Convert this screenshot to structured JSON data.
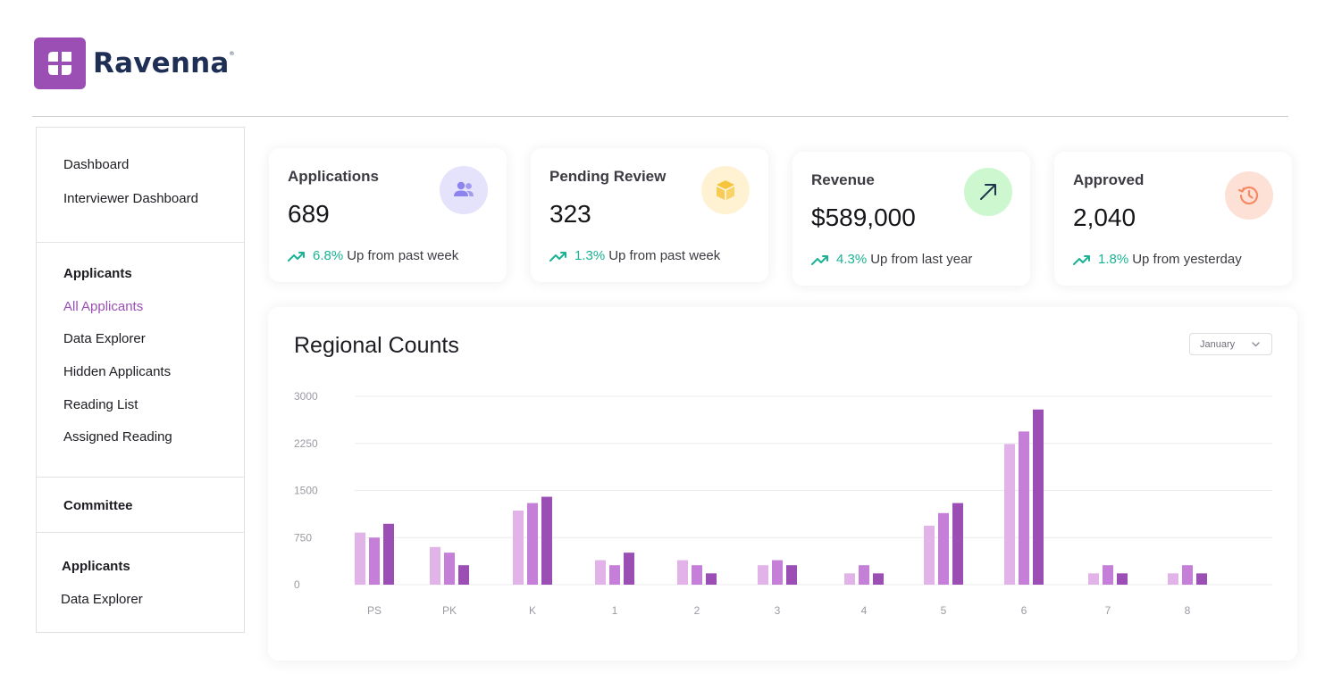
{
  "brand": {
    "name": "Ravenna",
    "registered_mark": "®",
    "logo_icon": "window-logo-icon",
    "color": "#9b4fb5"
  },
  "sidebar": {
    "top_items": [
      {
        "label": "Dashboard"
      },
      {
        "label": "Interviewer Dashboard"
      }
    ],
    "applicants": {
      "heading": "Applicants",
      "items": [
        {
          "label": "All Applicants",
          "active": true
        },
        {
          "label": "Data Explorer"
        },
        {
          "label": "Hidden Applicants"
        },
        {
          "label": "Reading List"
        },
        {
          "label": "Assigned Reading"
        }
      ]
    },
    "committee": {
      "heading": "Committee"
    },
    "applicants2": {
      "heading": "Applicants",
      "items": [
        {
          "label": "Data Explorer"
        }
      ]
    }
  },
  "stats": [
    {
      "title": "Applications",
      "value": "689",
      "pct": "6.8%",
      "trend_text": "Up from past week",
      "icon": "users-icon",
      "icon_bg": "#e4e3fb",
      "icon_color": "#8d83ee"
    },
    {
      "title": "Pending Review",
      "value": "323",
      "pct": "1.3%",
      "trend_text": "Up from past week",
      "icon": "box-icon",
      "icon_bg": "#fff2d3",
      "icon_color": "#f7c53d"
    },
    {
      "title": "Revenue",
      "value": "$589,000",
      "pct": "4.3%",
      "trend_text": "Up from last year",
      "icon": "arrow-up-right-icon",
      "icon_bg": "#cdf8cf",
      "icon_color": "#1e3550"
    },
    {
      "title": "Approved",
      "value": "2,040",
      "pct": "1.8%",
      "trend_text": "Up from yesterday",
      "icon": "history-clock-icon",
      "icon_bg": "#fde1d6",
      "icon_color": "#f58a63"
    }
  ],
  "trend_color": "#19b394",
  "regional": {
    "title": "Regional Counts",
    "month_select": {
      "value": "January"
    }
  },
  "chart_data": {
    "type": "bar",
    "title": "Regional Counts",
    "categories": [
      "PS",
      "PK",
      "K",
      "1",
      "2",
      "3",
      "4",
      "5",
      "6",
      "7",
      "8"
    ],
    "series": [
      {
        "values": [
          830,
          600,
          1180,
          390,
          390,
          310,
          180,
          940,
          2240,
          180,
          180
        ],
        "color": "#e2b3e8"
      },
      {
        "values": [
          750,
          510,
          1300,
          310,
          310,
          390,
          310,
          1140,
          2440,
          310,
          310
        ],
        "color": "#c57fd8"
      },
      {
        "values": [
          970,
          310,
          1400,
          510,
          180,
          310,
          180,
          1300,
          2790,
          180,
          180
        ],
        "color": "#9b4fb5"
      }
    ],
    "y_ticks": [
      "0",
      "750",
      "1500",
      "2250",
      "3000"
    ],
    "ylim": [
      0,
      3000
    ],
    "grid": true
  }
}
